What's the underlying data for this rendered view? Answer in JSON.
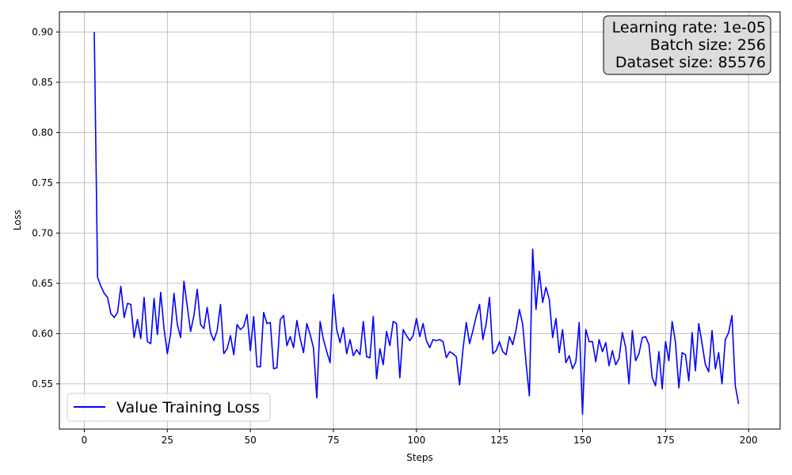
{
  "chart_data": {
    "type": "line",
    "xlabel": "Steps",
    "ylabel": "Loss",
    "xlim": [
      -7.5,
      209.5
    ],
    "ylim": [
      0.505,
      0.92
    ],
    "xticks": [
      0,
      25,
      50,
      75,
      100,
      125,
      150,
      175,
      200
    ],
    "yticks": [
      0.55,
      0.6,
      0.65,
      0.7,
      0.75,
      0.8,
      0.85,
      0.9
    ],
    "ytick_labels": [
      "0.55",
      "0.60",
      "0.65",
      "0.70",
      "0.75",
      "0.80",
      "0.85",
      "0.90"
    ],
    "grid": true,
    "legend_position": "lower-left",
    "series": [
      {
        "name": "Value Training Loss",
        "color": "#0000ff",
        "x_start": 3,
        "x_step": 1,
        "values": [
          0.9,
          0.656,
          0.647,
          0.64,
          0.636,
          0.62,
          0.616,
          0.621,
          0.647,
          0.616,
          0.63,
          0.629,
          0.596,
          0.614,
          0.595,
          0.636,
          0.592,
          0.59,
          0.635,
          0.599,
          0.641,
          0.605,
          0.58,
          0.6,
          0.64,
          0.609,
          0.596,
          0.652,
          0.627,
          0.602,
          0.618,
          0.644,
          0.609,
          0.605,
          0.626,
          0.601,
          0.593,
          0.603,
          0.629,
          0.58,
          0.585,
          0.598,
          0.579,
          0.609,
          0.604,
          0.607,
          0.619,
          0.583,
          0.617,
          0.567,
          0.567,
          0.621,
          0.61,
          0.611,
          0.565,
          0.566,
          0.614,
          0.618,
          0.588,
          0.597,
          0.586,
          0.613,
          0.595,
          0.581,
          0.61,
          0.599,
          0.586,
          0.536,
          0.612,
          0.594,
          0.582,
          0.571,
          0.639,
          0.604,
          0.591,
          0.606,
          0.58,
          0.594,
          0.578,
          0.584,
          0.579,
          0.612,
          0.577,
          0.576,
          0.617,
          0.555,
          0.585,
          0.569,
          0.602,
          0.588,
          0.612,
          0.61,
          0.556,
          0.604,
          0.598,
          0.593,
          0.598,
          0.615,
          0.597,
          0.61,
          0.593,
          0.586,
          0.594,
          0.593,
          0.594,
          0.592,
          0.576,
          0.582,
          0.58,
          0.577,
          0.549,
          0.584,
          0.611,
          0.59,
          0.603,
          0.617,
          0.629,
          0.594,
          0.61,
          0.636,
          0.58,
          0.583,
          0.592,
          0.582,
          0.579,
          0.597,
          0.589,
          0.604,
          0.624,
          0.609,
          0.571,
          0.538,
          0.684,
          0.624,
          0.662,
          0.631,
          0.646,
          0.634,
          0.596,
          0.615,
          0.581,
          0.604,
          0.571,
          0.578,
          0.565,
          0.572,
          0.611,
          0.52,
          0.604,
          0.592,
          0.592,
          0.572,
          0.594,
          0.582,
          0.591,
          0.568,
          0.583,
          0.569,
          0.575,
          0.601,
          0.586,
          0.55,
          0.603,
          0.573,
          0.58,
          0.596,
          0.597,
          0.589,
          0.556,
          0.548,
          0.582,
          0.545,
          0.592,
          0.573,
          0.612,
          0.591,
          0.546,
          0.581,
          0.579,
          0.553,
          0.601,
          0.563,
          0.61,
          0.59,
          0.569,
          0.562,
          0.603,
          0.565,
          0.581,
          0.55,
          0.594,
          0.601,
          0.618,
          0.548,
          0.53
        ]
      }
    ],
    "annotation": {
      "position": "top-right",
      "lines": [
        "Learning rate: 1e-05",
        "Batch size: 256",
        "Dataset size: 85576"
      ]
    }
  }
}
